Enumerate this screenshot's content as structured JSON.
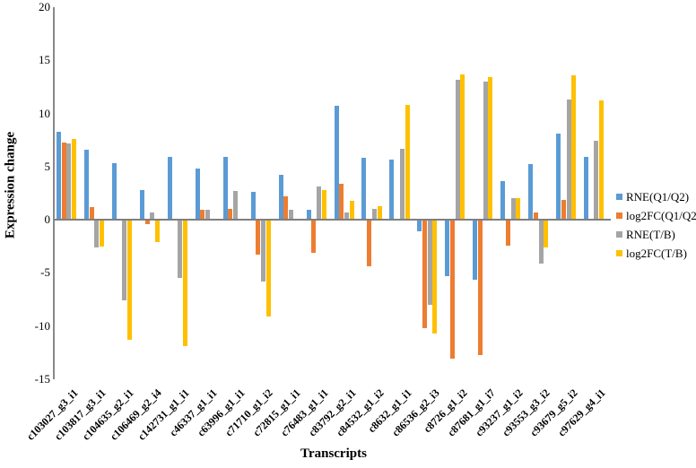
{
  "chart_data": {
    "type": "bar",
    "title": "",
    "xlabel": "Transcripts",
    "ylabel": "Expression change",
    "ylim": [
      -15,
      20
    ],
    "yticks": [
      20,
      15,
      10,
      5,
      0,
      -5,
      -10,
      -15
    ],
    "grid": false,
    "legend_position": "right",
    "categories": [
      "c103027_g3_i1",
      "c103817_g3_i1",
      "c104635_g2_i1",
      "c106469_g2_i4",
      "c142731_g1_i1",
      "c46337_g1_i1",
      "c63996_g1_i1",
      "c71710_g1_i2",
      "c72815_g1_i1",
      "c76483_g1_i1",
      "c83792_g2_i1",
      "c84532_g1_i2",
      "c8632_g1_i1",
      "c86536_g2_i3",
      "c8726_g1_i2",
      "c87681_g1_i7",
      "c93237_g1_i2",
      "c93553_g3_i2",
      "c93679_g5_i2",
      "c97629_g4_i1"
    ],
    "series": [
      {
        "name": "RNE(Q1/Q2)",
        "color": "#5B9BD5",
        "values": [
          8.3,
          6.6,
          5.3,
          2.8,
          5.9,
          4.8,
          5.9,
          2.6,
          4.2,
          0.9,
          10.7,
          5.8,
          5.7,
          -1.1,
          -5.3,
          -5.6,
          3.6,
          5.2,
          8.1,
          5.9
        ]
      },
      {
        "name": "log2FC(Q1/Q2)",
        "color": "#ED7D31",
        "values": [
          7.3,
          1.2,
          0,
          -0.4,
          0,
          0.9,
          1.0,
          -3.3,
          2.2,
          -3.1,
          3.4,
          -4.4,
          0,
          -10.2,
          -13.1,
          -12.7,
          -2.4,
          0.7,
          1.9,
          0
        ]
      },
      {
        "name": "RNE(T/B)",
        "color": "#A5A5A5",
        "values": [
          7.2,
          -2.6,
          -7.6,
          0.7,
          -5.5,
          0.9,
          2.7,
          -5.8,
          0.9,
          3.1,
          0.7,
          1.0,
          6.7,
          -8.0,
          13.2,
          13.0,
          2.0,
          -4.1,
          11.3,
          7.4
        ]
      },
      {
        "name": "log2FC(T/B)",
        "color": "#FFC000",
        "values": [
          7.6,
          -2.5,
          -11.3,
          -2.1,
          -11.9,
          0,
          0,
          -9.1,
          0,
          2.8,
          1.8,
          1.3,
          10.8,
          -10.7,
          13.7,
          13.4,
          2.0,
          -2.6,
          13.6,
          11.2
        ]
      }
    ]
  }
}
